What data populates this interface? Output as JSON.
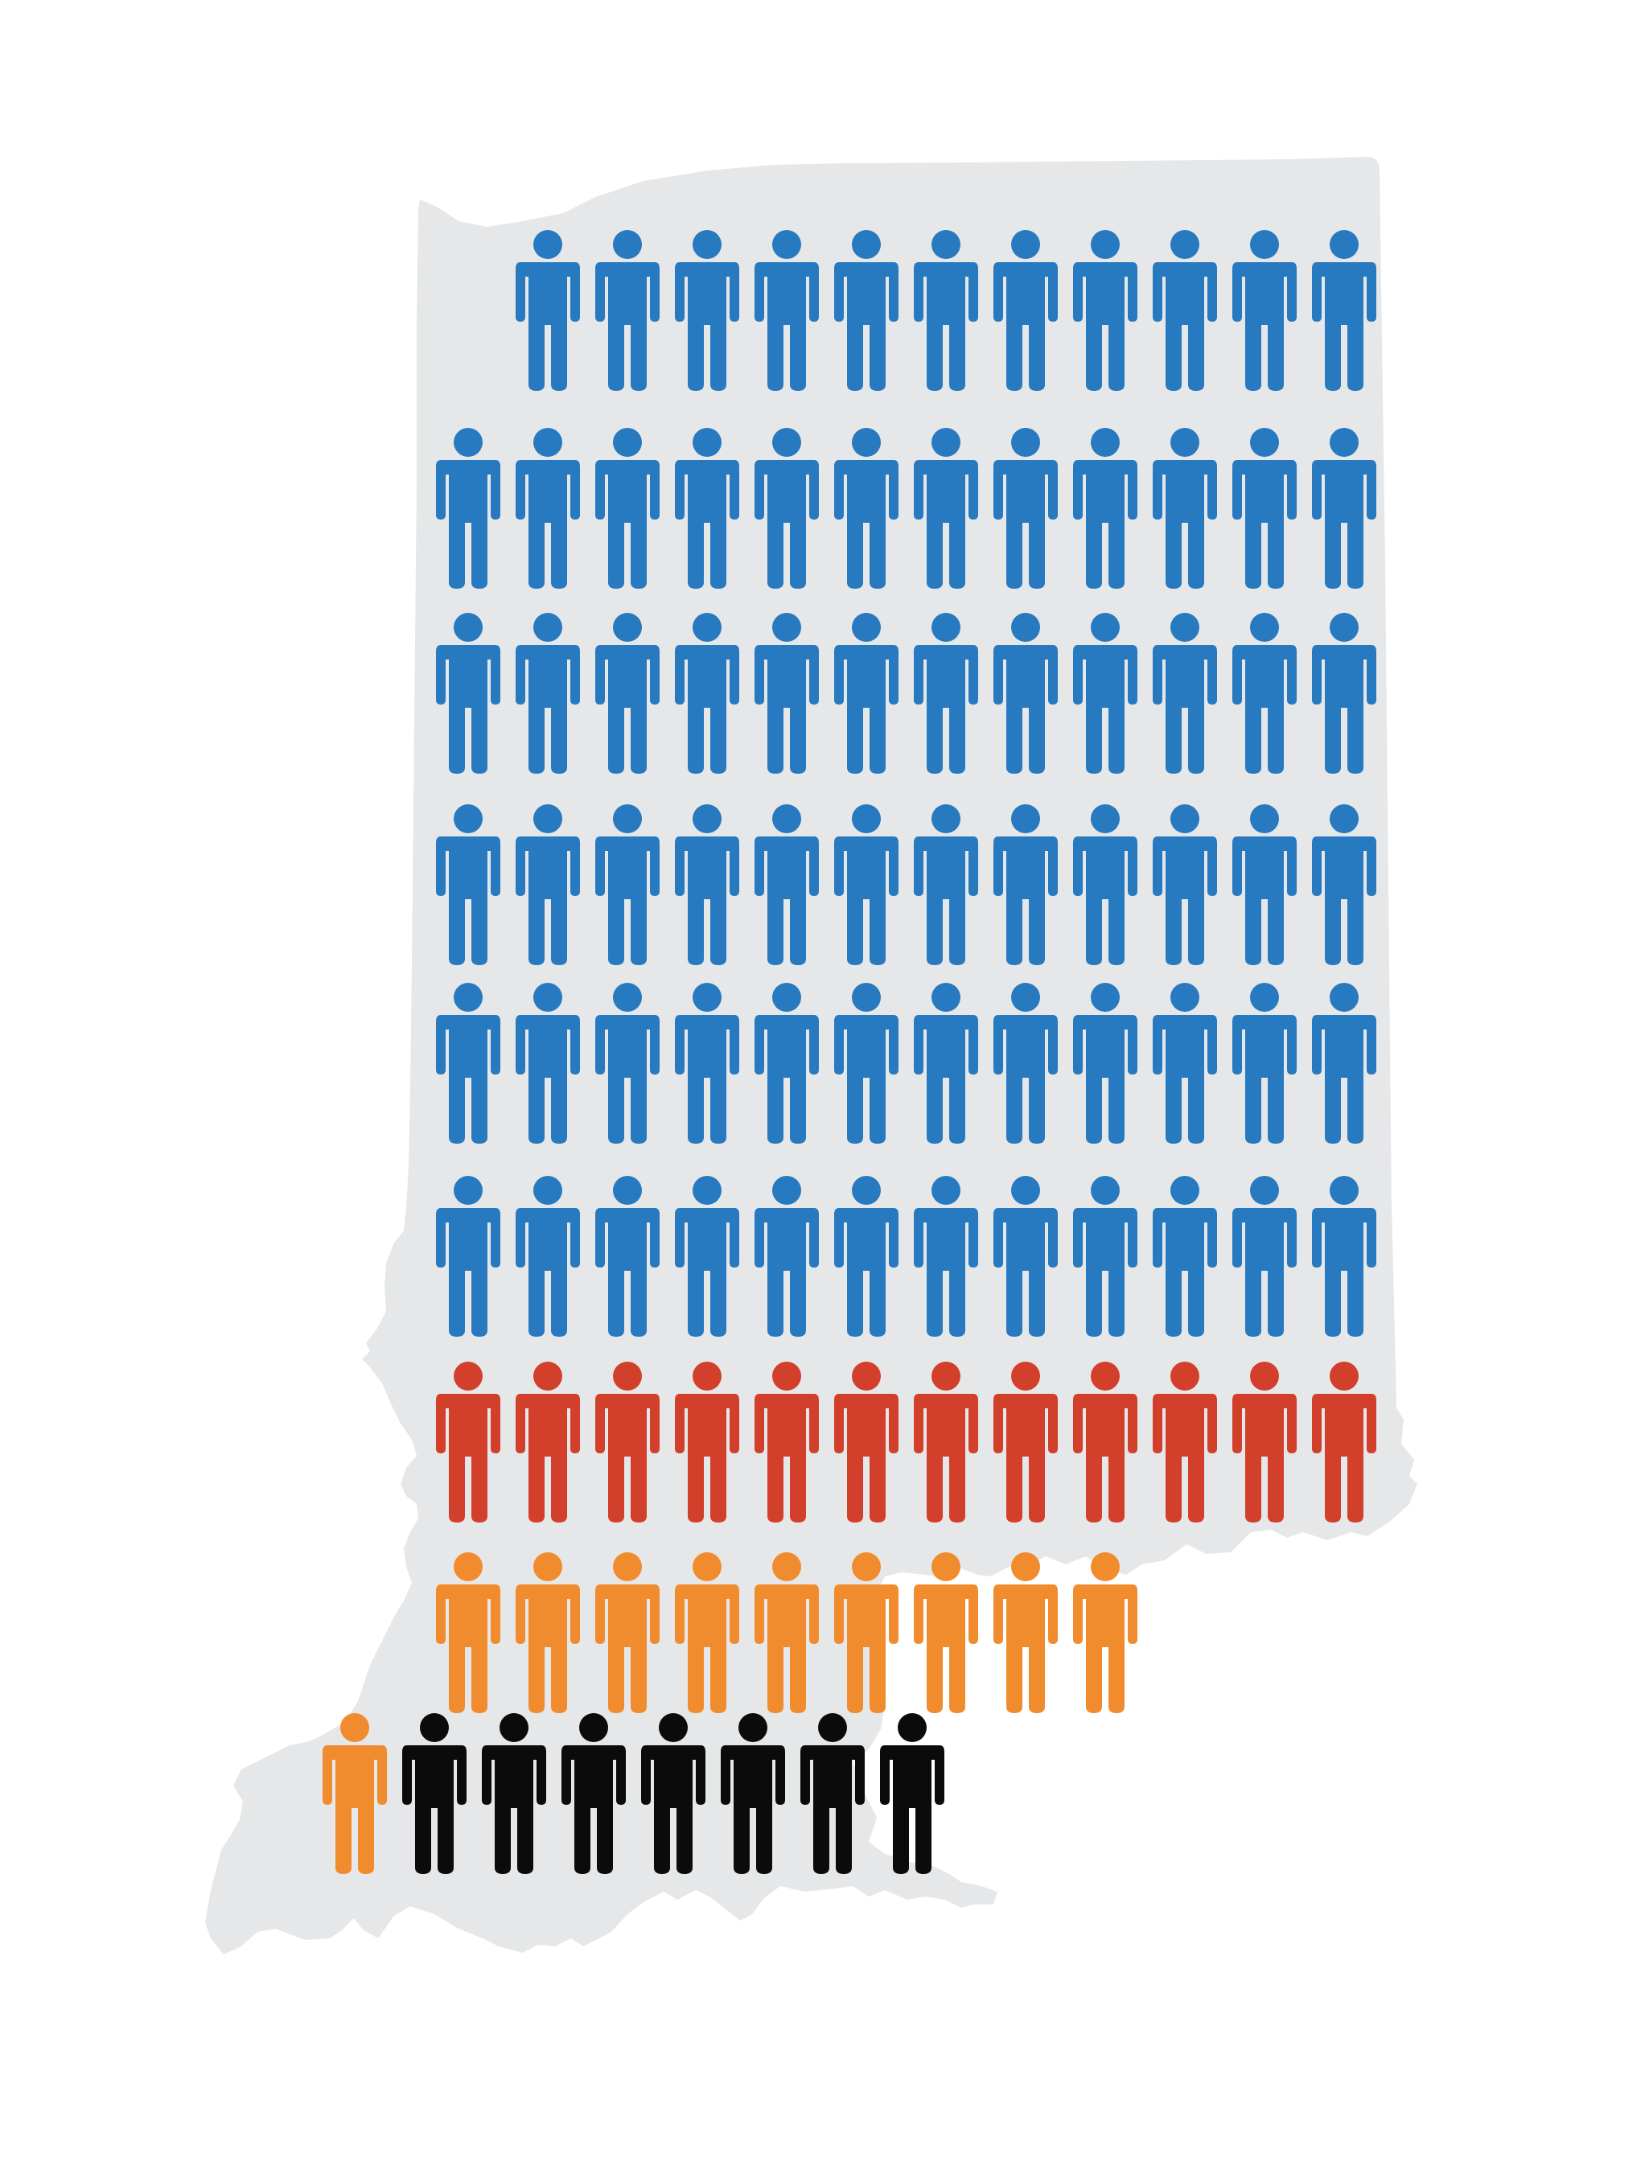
{
  "chart_data": {
    "type": "pictograph",
    "title": "",
    "background_shape": "indiana-state-outline",
    "colors": {
      "map": "#e6e7e8",
      "blue": "#2779c0",
      "red": "#d23f2a",
      "orange": "#f18c2e",
      "black": "#0b0b0b"
    },
    "rows": [
      {
        "figures": [
          "blue",
          "blue",
          "blue",
          "blue",
          "blue",
          "blue",
          "blue",
          "blue",
          "blue",
          "blue",
          "blue"
        ],
        "align": "right"
      },
      {
        "figures": [
          "blue",
          "blue",
          "blue",
          "blue",
          "blue",
          "blue",
          "blue",
          "blue",
          "blue",
          "blue",
          "blue",
          "blue"
        ],
        "align": "right"
      },
      {
        "figures": [
          "blue",
          "blue",
          "blue",
          "blue",
          "blue",
          "blue",
          "blue",
          "blue",
          "blue",
          "blue",
          "blue",
          "blue"
        ],
        "align": "right"
      },
      {
        "figures": [
          "blue",
          "blue",
          "blue",
          "blue",
          "blue",
          "blue",
          "blue",
          "blue",
          "blue",
          "blue",
          "blue",
          "blue"
        ],
        "align": "right"
      },
      {
        "figures": [
          "blue",
          "blue",
          "blue",
          "blue",
          "blue",
          "blue",
          "blue",
          "blue",
          "blue",
          "blue",
          "blue",
          "blue"
        ],
        "align": "right"
      },
      {
        "figures": [
          "blue",
          "blue",
          "blue",
          "blue",
          "blue",
          "blue",
          "blue",
          "blue",
          "blue",
          "blue",
          "blue",
          "blue"
        ],
        "align": "right"
      },
      {
        "figures": [
          "red",
          "red",
          "red",
          "red",
          "red",
          "red",
          "red",
          "red",
          "red",
          "red",
          "red",
          "red"
        ],
        "align": "right"
      },
      {
        "figures": [
          "orange",
          "orange",
          "orange",
          "orange",
          "orange",
          "orange",
          "orange",
          "orange",
          "orange"
        ],
        "align": "left"
      },
      {
        "figures": [
          "orange",
          "black",
          "black",
          "black",
          "black",
          "black",
          "black",
          "black"
        ],
        "align": "offset"
      }
    ],
    "counts": {
      "blue": 71,
      "red": 12,
      "orange": 10,
      "black": 7
    }
  }
}
